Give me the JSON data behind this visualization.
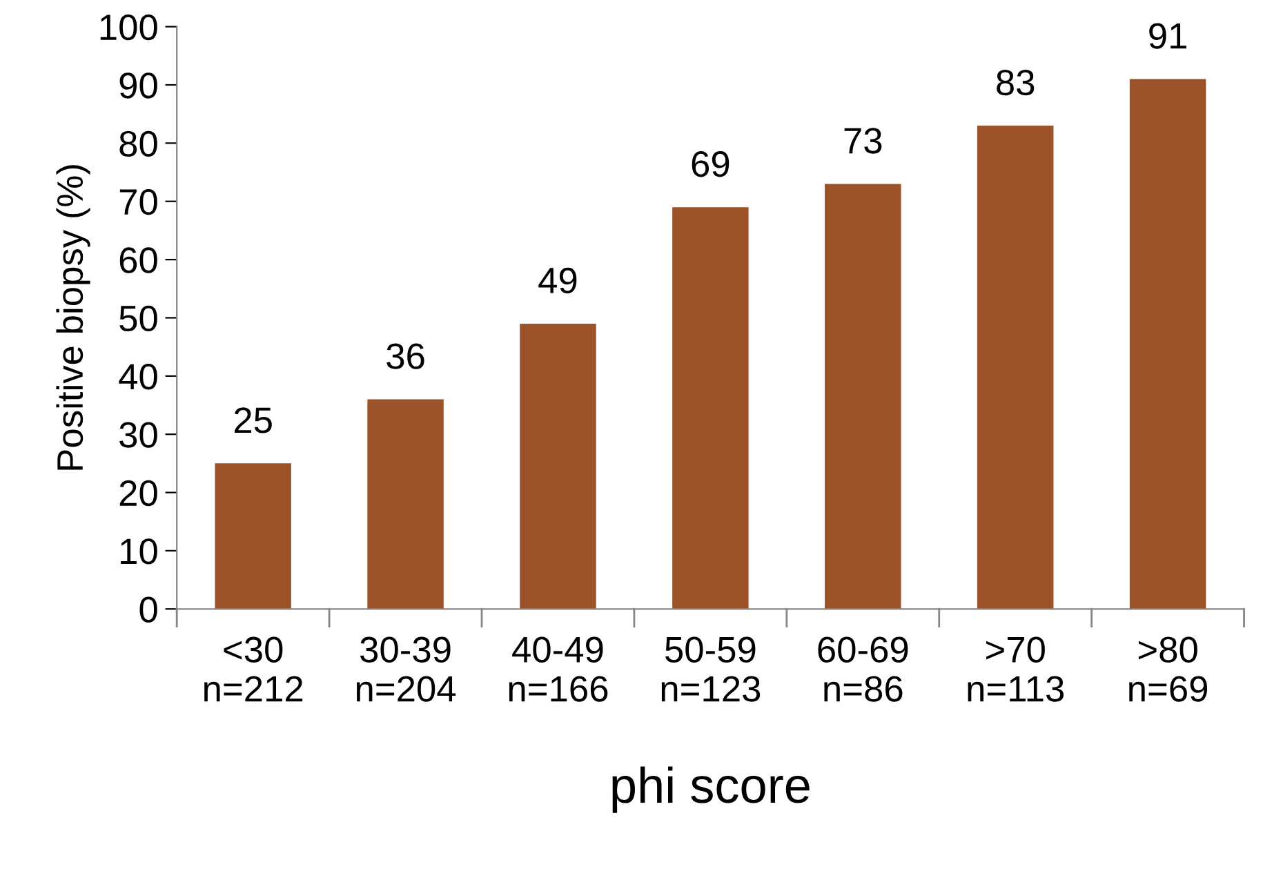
{
  "chart_data": {
    "type": "bar",
    "xlabel": "phi score",
    "ylabel": "Positive biopsy (%)",
    "categories": [
      "<30\nn=212",
      "30-39\nn=204",
      "40-49\nn=166",
      "50-59\nn=123",
      "60-69\nn=86",
      ">70\nn=113",
      ">80\nn=69"
    ],
    "values": [
      25,
      36,
      49,
      69,
      73,
      83,
      91
    ],
    "color": "#9c5228",
    "ylim": [
      0,
      100
    ],
    "yticks": [
      0,
      10,
      20,
      30,
      40,
      50,
      60,
      70,
      80,
      90,
      100
    ],
    "grid": false,
    "data_labels": true
  }
}
